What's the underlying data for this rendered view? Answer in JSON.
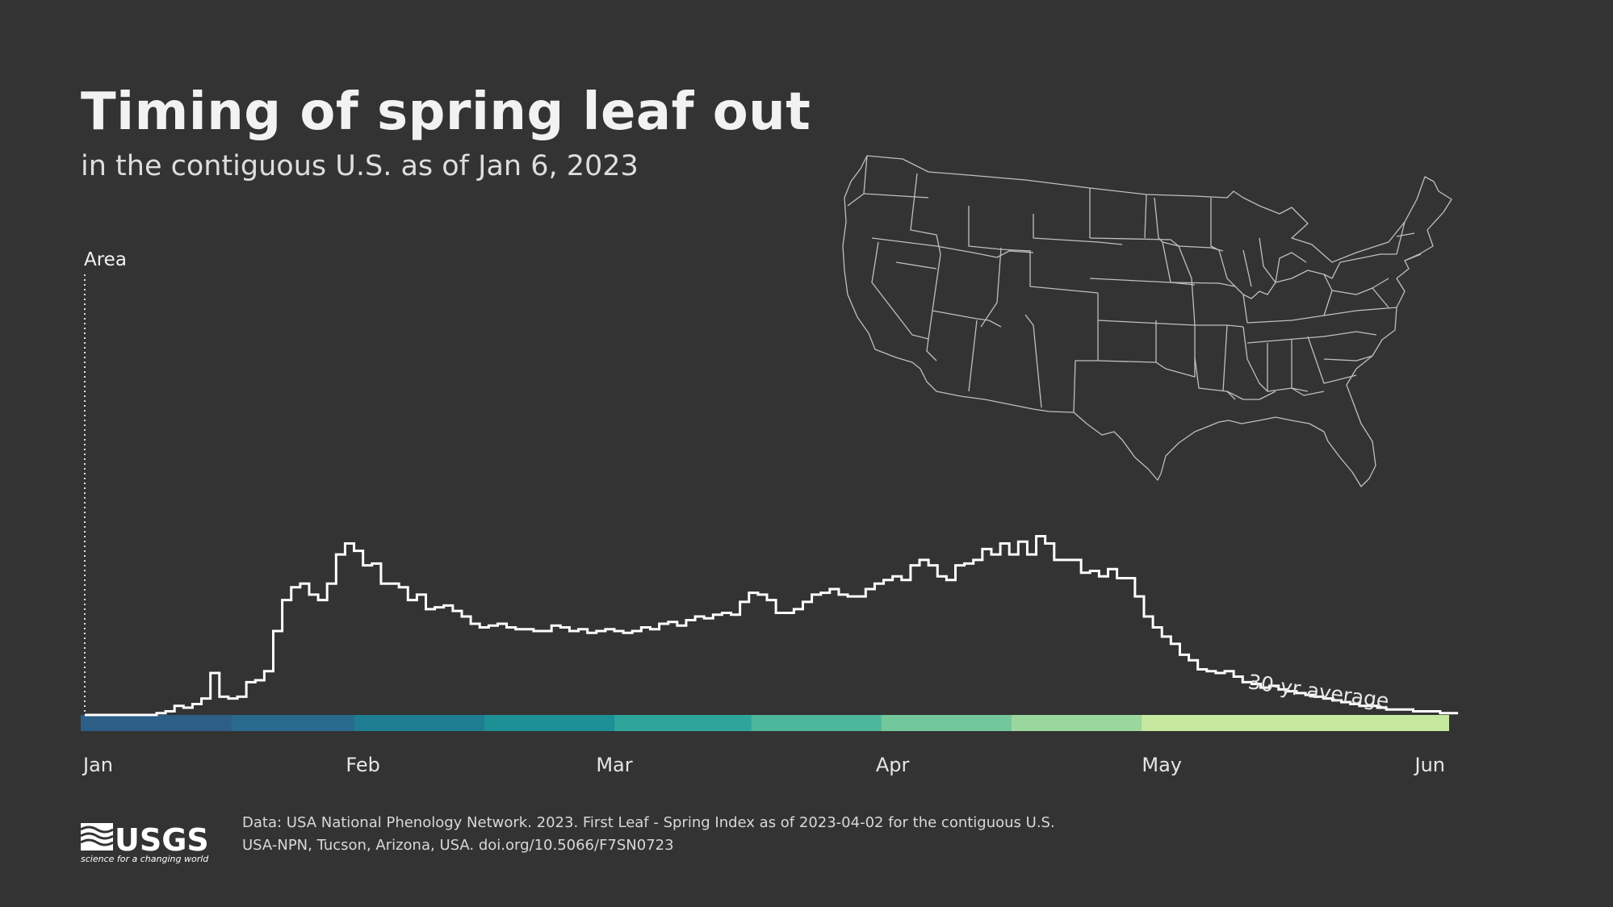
{
  "title": "Timing of spring leaf out",
  "subtitle": "in the contiguous U.S. as of Jan 6, 2023",
  "logo": {
    "text": "USGS",
    "tagline": "science for a changing world"
  },
  "source": {
    "line1": "Data: USA National Phenology Network. 2023. First Leaf - Spring Index as of 2023-04-02 for the contiguous U.S.",
    "line2": "USA-NPN, Tucson, Arizona, USA. doi.org/10.5066/F7SN0723"
  },
  "map": {
    "name": "contiguous-us-map"
  },
  "chart_data": {
    "type": "area",
    "title": "Timing of spring leaf out",
    "ylabel": "Area",
    "xlabel": "",
    "x_unit": "day of year",
    "xlim": [
      1,
      153
    ],
    "ylim": [
      0,
      100
    ],
    "tick_labels": [
      "Jan",
      "Feb",
      "Mar",
      "Apr",
      "May",
      "Jun"
    ],
    "tick_days": [
      1,
      32,
      60,
      91,
      121,
      152
    ],
    "annotation": "30-yr average",
    "color_band": [
      "#2d5e88",
      "#286a8e",
      "#1f7d91",
      "#1d9095",
      "#2ea59a",
      "#4cb79a",
      "#72c79b",
      "#9ad79e",
      "#c6e79e"
    ],
    "series": [
      {
        "name": "30-yr average",
        "values": [
          0,
          0,
          0,
          0,
          0,
          0,
          0,
          0,
          1,
          2,
          5,
          4,
          6,
          9,
          23,
          10,
          9,
          10,
          18,
          19,
          24,
          46,
          63,
          70,
          72,
          66,
          63,
          72,
          88,
          94,
          90,
          82,
          83,
          72,
          72,
          70,
          63,
          66,
          58,
          59,
          60,
          57,
          54,
          50,
          48,
          49,
          50,
          48,
          47,
          47,
          46,
          46,
          49,
          48,
          46,
          47,
          45,
          46,
          47,
          46,
          45,
          46,
          48,
          47,
          50,
          51,
          49,
          52,
          54,
          53,
          55,
          56,
          55,
          62,
          67,
          66,
          63,
          56,
          56,
          58,
          62,
          66,
          67,
          69,
          66,
          65,
          65,
          69,
          72,
          74,
          76,
          74,
          82,
          85,
          82,
          76,
          74,
          82,
          83,
          85,
          91,
          88,
          94,
          88,
          95,
          88,
          98,
          94,
          85,
          85,
          85,
          78,
          79,
          76,
          80,
          75,
          75,
          65,
          54,
          48,
          43,
          39,
          33,
          30,
          25,
          24,
          23,
          24,
          21,
          18,
          17,
          15,
          16,
          14,
          13,
          12,
          11,
          10,
          9,
          8,
          7,
          6,
          5,
          5,
          4,
          3,
          3,
          3,
          2,
          2,
          2,
          1,
          1
        ]
      }
    ]
  }
}
